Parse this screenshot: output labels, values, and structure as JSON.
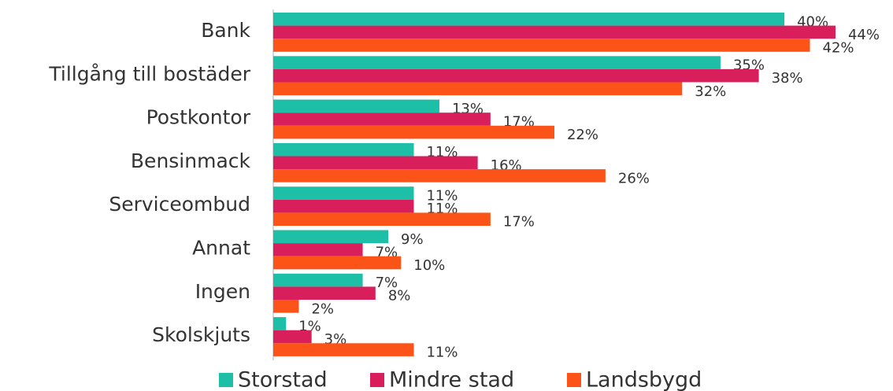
{
  "chart_data": {
    "type": "bar",
    "orientation": "horizontal",
    "categories": [
      "Bank",
      "Tillgång till bostäder",
      "Postkontor",
      "Bensinmack",
      "Serviceombud",
      "Annat",
      "Ingen",
      "Skolskjuts"
    ],
    "xlim": [
      0,
      48.5
    ],
    "legend": "bottom",
    "series": [
      {
        "name": "Storstad",
        "color": "#1dbfa6",
        "values": [
          40,
          35,
          13,
          11,
          11,
          9,
          7,
          1
        ],
        "value_labels": [
          "40%",
          "35%",
          "13%",
          "11%",
          "11%",
          "9%",
          "7%",
          "1%"
        ]
      },
      {
        "name": "Mindre stad",
        "color": "#d81f5b",
        "values": [
          44,
          38,
          17,
          16,
          11,
          7,
          8,
          3
        ],
        "value_labels": [
          "44%",
          "38%",
          "17%",
          "16%",
          "11%",
          "7%",
          "8%",
          "3%"
        ]
      },
      {
        "name": "Landsbygd",
        "color": "#fb5318",
        "values": [
          42,
          32,
          22,
          26,
          17,
          10,
          2,
          11
        ],
        "value_labels": [
          "42%",
          "32%",
          "22%",
          "26%",
          "17%",
          "10%",
          "2%",
          "11%"
        ]
      }
    ]
  }
}
